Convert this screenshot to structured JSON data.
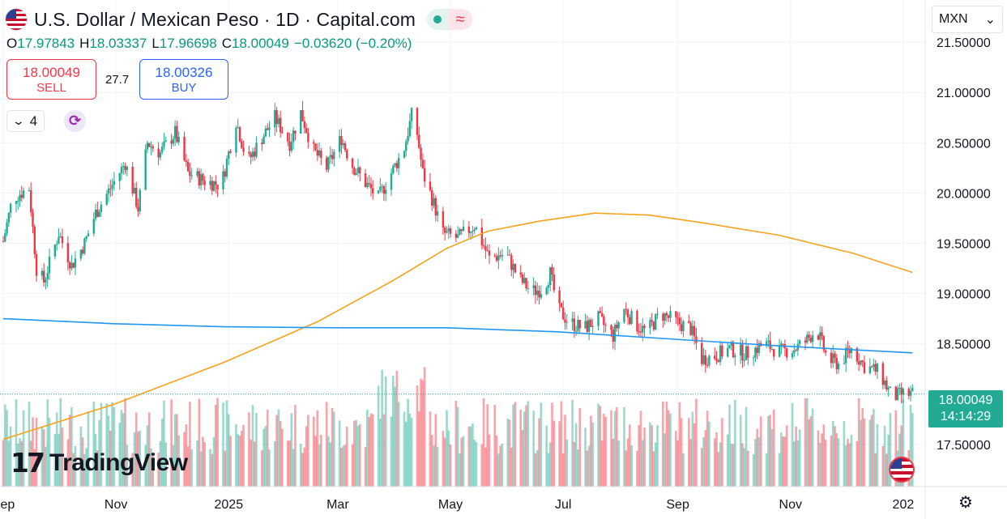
{
  "header": {
    "title": "U.S. Dollar / Mexican Peso · 1D · Capital.com",
    "ohlc": {
      "o_label": "O",
      "o": "17.97843",
      "h_label": "H",
      "h": "18.03337",
      "l_label": "L",
      "l": "17.96698",
      "c_label": "C",
      "c": "18.00049",
      "change": "−0.03620 (−0.20%)"
    },
    "sell_price": "18.00049",
    "sell_label": "SELL",
    "buy_price": "18.00326",
    "buy_label": "BUY",
    "spread": "27.7",
    "indicator_count": "4"
  },
  "logo_text": "TradingView",
  "currency": "MXN",
  "last_price": "18.00049",
  "countdown": "14:14:29",
  "colors": {
    "up": "#22ab94",
    "down": "#f23645",
    "ma_orange": "#f7a21b",
    "ma_blue": "#2196f3",
    "grid": "#f0f3fa"
  },
  "chart_data": {
    "type": "candlestick",
    "title": "U.S. Dollar / Mexican Peso · 1D · Capital.com",
    "x_ticks": [
      {
        "label": "Sep",
        "t": 0
      },
      {
        "label": "Nov",
        "t": 61
      },
      {
        "label": "2025",
        "t": 122
      },
      {
        "label": "Mar",
        "t": 181
      },
      {
        "label": "May",
        "t": 242
      },
      {
        "label": "Jul",
        "t": 303
      },
      {
        "label": "Sep",
        "t": 365
      },
      {
        "label": "Nov",
        "t": 426
      },
      {
        "label": "202",
        "t": 487
      }
    ],
    "x_range": [
      0,
      498
    ],
    "y_ticks": [
      "21.50000",
      "21.00000",
      "20.50000",
      "20.00000",
      "19.50000",
      "19.00000",
      "18.50000",
      "17.50000"
    ],
    "y_tick_values": [
      21.5,
      21.0,
      20.5,
      20.0,
      19.5,
      19.0,
      18.5,
      17.5
    ],
    "ylim": [
      17.08,
      21.92
    ],
    "price_path_closes": [
      {
        "t": 0,
        "v": 19.52
      },
      {
        "t": 5,
        "v": 19.95
      },
      {
        "t": 14,
        "v": 20.05
      },
      {
        "t": 18,
        "v": 19.25
      },
      {
        "t": 22,
        "v": 19.12
      },
      {
        "t": 30,
        "v": 19.6
      },
      {
        "t": 37,
        "v": 19.28
      },
      {
        "t": 44,
        "v": 19.5
      },
      {
        "t": 50,
        "v": 19.8
      },
      {
        "t": 58,
        "v": 20.05
      },
      {
        "t": 66,
        "v": 20.3
      },
      {
        "t": 73,
        "v": 19.85
      },
      {
        "t": 78,
        "v": 20.5
      },
      {
        "t": 85,
        "v": 20.4
      },
      {
        "t": 93,
        "v": 20.6
      },
      {
        "t": 100,
        "v": 20.2
      },
      {
        "t": 109,
        "v": 20.12
      },
      {
        "t": 118,
        "v": 20.08
      },
      {
        "t": 126,
        "v": 20.72
      },
      {
        "t": 132,
        "v": 20.3
      },
      {
        "t": 140,
        "v": 20.55
      },
      {
        "t": 147,
        "v": 20.75
      },
      {
        "t": 155,
        "v": 20.5
      },
      {
        "t": 161,
        "v": 20.8
      },
      {
        "t": 168,
        "v": 20.42
      },
      {
        "t": 175,
        "v": 20.25
      },
      {
        "t": 183,
        "v": 20.55
      },
      {
        "t": 188,
        "v": 20.3
      },
      {
        "t": 196,
        "v": 20.1
      },
      {
        "t": 203,
        "v": 19.95
      },
      {
        "t": 210,
        "v": 20.2
      },
      {
        "t": 217,
        "v": 20.45
      },
      {
        "t": 222,
        "v": 20.85
      },
      {
        "t": 227,
        "v": 20.2
      },
      {
        "t": 232,
        "v": 19.95
      },
      {
        "t": 238,
        "v": 19.6
      },
      {
        "t": 246,
        "v": 19.55
      },
      {
        "t": 255,
        "v": 19.68
      },
      {
        "t": 263,
        "v": 19.35
      },
      {
        "t": 272,
        "v": 19.4
      },
      {
        "t": 279,
        "v": 19.15
      },
      {
        "t": 286,
        "v": 19.02
      },
      {
        "t": 292,
        "v": 19.05
      },
      {
        "t": 296,
        "v": 19.2
      },
      {
        "t": 300,
        "v": 18.85
      },
      {
        "t": 306,
        "v": 18.72
      },
      {
        "t": 314,
        "v": 18.65
      },
      {
        "t": 322,
        "v": 18.75
      },
      {
        "t": 330,
        "v": 18.58
      },
      {
        "t": 336,
        "v": 18.85
      },
      {
        "t": 342,
        "v": 18.7
      },
      {
        "t": 348,
        "v": 18.62
      },
      {
        "t": 356,
        "v": 18.8
      },
      {
        "t": 364,
        "v": 18.72
      },
      {
        "t": 372,
        "v": 18.65
      },
      {
        "t": 378,
        "v": 18.35
      },
      {
        "t": 385,
        "v": 18.38
      },
      {
        "t": 393,
        "v": 18.45
      },
      {
        "t": 402,
        "v": 18.4
      },
      {
        "t": 412,
        "v": 18.5
      },
      {
        "t": 420,
        "v": 18.42
      },
      {
        "t": 428,
        "v": 18.45
      },
      {
        "t": 434,
        "v": 18.52
      },
      {
        "t": 440,
        "v": 18.65
      },
      {
        "t": 446,
        "v": 18.35
      },
      {
        "t": 452,
        "v": 18.3
      },
      {
        "t": 459,
        "v": 18.45
      },
      {
        "t": 466,
        "v": 18.28
      },
      {
        "t": 474,
        "v": 18.22
      },
      {
        "t": 481,
        "v": 17.97
      },
      {
        "t": 487,
        "v": 18.0
      },
      {
        "t": 492,
        "v": 18.0
      }
    ],
    "moving_averages": [
      {
        "name": "MA orange",
        "color": "#f7a21b",
        "points": [
          {
            "t": 0,
            "v": 17.55
          },
          {
            "t": 60,
            "v": 17.9
          },
          {
            "t": 120,
            "v": 18.32
          },
          {
            "t": 170,
            "v": 18.72
          },
          {
            "t": 210,
            "v": 19.12
          },
          {
            "t": 240,
            "v": 19.45
          },
          {
            "t": 262,
            "v": 19.62
          },
          {
            "t": 290,
            "v": 19.72
          },
          {
            "t": 320,
            "v": 19.8
          },
          {
            "t": 350,
            "v": 19.78
          },
          {
            "t": 380,
            "v": 19.7
          },
          {
            "t": 420,
            "v": 19.58
          },
          {
            "t": 460,
            "v": 19.4
          },
          {
            "t": 492,
            "v": 19.21
          }
        ]
      },
      {
        "name": "MA blue",
        "color": "#2196f3",
        "points": [
          {
            "t": 0,
            "v": 18.75
          },
          {
            "t": 60,
            "v": 18.7
          },
          {
            "t": 120,
            "v": 18.67
          },
          {
            "t": 180,
            "v": 18.66
          },
          {
            "t": 240,
            "v": 18.66
          },
          {
            "t": 300,
            "v": 18.62
          },
          {
            "t": 360,
            "v": 18.55
          },
          {
            "t": 420,
            "v": 18.48
          },
          {
            "t": 492,
            "v": 18.41
          }
        ]
      }
    ],
    "volume_band": "below price, relative heights"
  }
}
